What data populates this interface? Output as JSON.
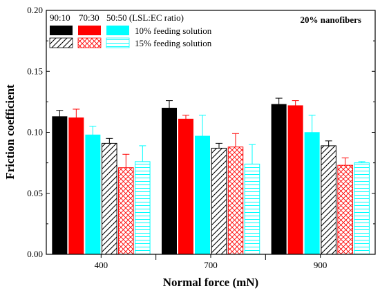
{
  "chart_data": {
    "type": "bar",
    "xlabel": "Normal force (mN)",
    "ylabel": "Friction coefficient",
    "annotation": "20% nanofibers",
    "ylim": [
      0,
      0.2
    ],
    "yticks": [
      "0.00",
      "0.05",
      "0.10",
      "0.15",
      "0.20"
    ],
    "categories": [
      "400",
      "700",
      "900"
    ],
    "legend": {
      "ratio_labels": [
        "90:10",
        "70:30",
        "50:50 (LSL:EC ratio)"
      ],
      "feeding_labels": [
        "10% feeding solution",
        "15% feeding solution"
      ]
    },
    "series": [
      {
        "name": "90:10 / 10% feeding solution",
        "values": [
          0.113,
          0.12,
          0.123
        ],
        "errors": [
          0.005,
          0.006,
          0.005
        ],
        "color": "#000000",
        "pattern": "solid"
      },
      {
        "name": "70:30 / 10% feeding solution",
        "values": [
          0.112,
          0.111,
          0.122
        ],
        "errors": [
          0.007,
          0.003,
          0.004
        ],
        "color": "#ff0000",
        "pattern": "solid"
      },
      {
        "name": "50:50 / 10% feeding solution",
        "values": [
          0.098,
          0.097,
          0.1
        ],
        "errors": [
          0.007,
          0.017,
          0.014
        ],
        "color": "#00ffff",
        "pattern": "solid"
      },
      {
        "name": "90:10 / 15% feeding solution",
        "values": [
          0.091,
          0.087,
          0.089
        ],
        "errors": [
          0.004,
          0.004,
          0.004
        ],
        "color": "#000000",
        "pattern": "diagonal"
      },
      {
        "name": "70:30 / 15% feeding solution",
        "values": [
          0.071,
          0.088,
          0.073
        ],
        "errors": [
          0.011,
          0.011,
          0.006
        ],
        "color": "#ff0000",
        "pattern": "crosshatch"
      },
      {
        "name": "50:50 / 15% feeding solution",
        "values": [
          0.076,
          0.074,
          0.075
        ],
        "errors": [
          0.013,
          0.016,
          0.001
        ],
        "color": "#00ffff",
        "pattern": "horizontal"
      }
    ]
  }
}
